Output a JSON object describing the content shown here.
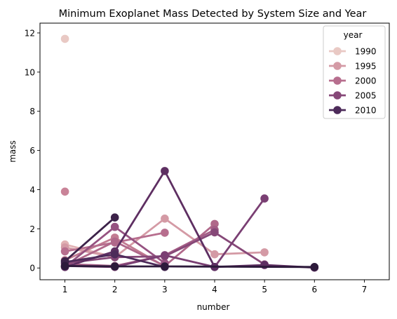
{
  "chart_data": {
    "type": "line",
    "title": "Minimum Exoplanet Mass Detected by System Size and Year",
    "xlabel": "number",
    "ylabel": "mass",
    "x_ticks": [
      1,
      2,
      3,
      4,
      5,
      6,
      7
    ],
    "y_ticks": [
      0,
      2,
      4,
      6,
      8,
      10,
      12
    ],
    "xlim": [
      0.5,
      7.5
    ],
    "ylim": [
      -0.6,
      12.5
    ],
    "grid": false,
    "legend": {
      "title": "year",
      "placement": "top-right",
      "entries": [
        {
          "label": "1990",
          "color": "#e9c9c4"
        },
        {
          "label": "1995",
          "color": "#d49aa5"
        },
        {
          "label": "2000",
          "color": "#b76e8e"
        },
        {
          "label": "2005",
          "color": "#864878"
        },
        {
          "label": "2010",
          "color": "#4d2b5a"
        }
      ]
    },
    "series": [
      {
        "color": "#e9c9c4",
        "points": [
          [
            1,
            11.7
          ]
        ]
      },
      {
        "color": "#e1b2b4",
        "points": [
          [
            1,
            1.2
          ],
          [
            2,
            0.55
          ]
        ]
      },
      {
        "color": "#d49aa5",
        "points": [
          [
            1,
            1.05
          ],
          [
            2,
            0.55
          ],
          [
            3,
            2.52
          ],
          [
            4,
            0.7
          ],
          [
            5,
            0.8
          ]
        ]
      },
      {
        "color": "#c98398",
        "points": [
          [
            1,
            3.9
          ]
        ]
      },
      {
        "color": "#c27c92",
        "points": [
          [
            1,
            0.4
          ],
          [
            2,
            1.55
          ],
          [
            3,
            0.08
          ]
        ]
      },
      {
        "color": "#b76e8e",
        "points": [
          [
            1,
            0.85
          ],
          [
            2,
            1.3
          ],
          [
            3,
            1.8
          ]
        ]
      },
      {
        "color": "#b0688a",
        "points": [
          [
            1,
            0.1
          ],
          [
            2,
            1.35
          ],
          [
            3,
            0.1
          ],
          [
            4,
            2.25
          ]
        ]
      },
      {
        "color": "#a35c85",
        "points": [
          [
            1,
            0.2
          ],
          [
            2,
            0.1
          ],
          [
            3,
            0.65
          ],
          [
            4,
            1.95
          ]
        ]
      },
      {
        "color": "#965281",
        "points": [
          [
            1,
            0.05
          ],
          [
            2,
            2.1
          ],
          [
            3,
            0.25
          ]
        ]
      },
      {
        "color": "#864878",
        "points": [
          [
            1,
            0.25
          ],
          [
            2,
            0.55
          ],
          [
            3,
            0.6
          ],
          [
            4,
            1.82
          ],
          [
            5,
            0.18
          ]
        ]
      },
      {
        "color": "#7a3f73",
        "points": [
          [
            1,
            0.1
          ],
          [
            2,
            0.05
          ],
          [
            3,
            0.65
          ],
          [
            4,
            0.05
          ],
          [
            5,
            3.55
          ]
        ]
      },
      {
        "color": "#5e2f62",
        "points": [
          [
            1,
            0.05
          ],
          [
            2,
            0.85
          ],
          [
            3,
            4.95
          ],
          [
            4,
            0.05
          ],
          [
            5,
            0.15
          ],
          [
            6,
            0.02
          ]
        ]
      },
      {
        "color": "#4d2b5a",
        "points": [
          [
            1,
            0.3
          ],
          [
            2,
            0.7
          ],
          [
            3,
            0.05
          ]
        ]
      },
      {
        "color": "#3c2249",
        "points": [
          [
            1,
            0.35
          ],
          [
            2,
            2.58
          ]
        ]
      },
      {
        "color": "#2d1a3b",
        "points": [
          [
            1,
            0.1
          ],
          [
            2,
            0.08
          ],
          [
            3,
            0.08
          ],
          [
            6,
            0.05
          ]
        ]
      }
    ]
  }
}
